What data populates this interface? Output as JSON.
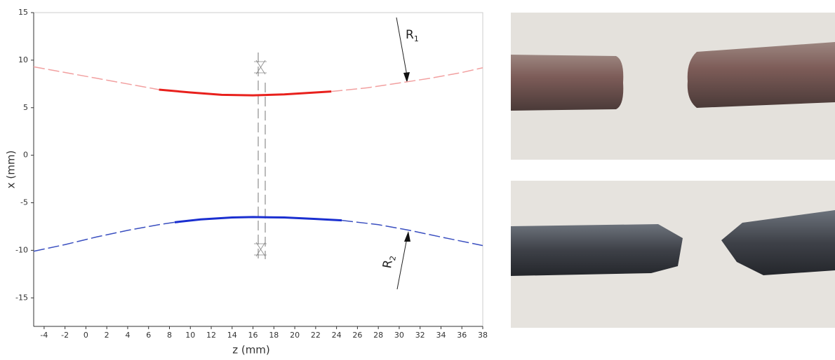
{
  "chart_data": {
    "type": "line",
    "xlabel": "z (mm)",
    "ylabel": "x (mm)",
    "xlim": [
      -5,
      38
    ],
    "ylim": [
      -18,
      15
    ],
    "xticks": [
      -4,
      -2,
      0,
      2,
      4,
      6,
      8,
      10,
      12,
      14,
      16,
      18,
      20,
      22,
      24,
      26,
      28,
      30,
      32,
      34,
      36,
      38
    ],
    "yticks": [
      15,
      10,
      5,
      0,
      -5,
      -10,
      -15
    ],
    "grid": false,
    "series": [
      {
        "color": "#f2a0a0",
        "style": "dashed",
        "x": [
          -5,
          -2,
          1,
          4,
          7
        ],
        "values": [
          9.3,
          8.7,
          8.1,
          7.5,
          6.9
        ]
      },
      {
        "color": "#e8201c",
        "style": "solid",
        "x": [
          7,
          10,
          13,
          16,
          19,
          22,
          23.5
        ],
        "values": [
          6.9,
          6.6,
          6.35,
          6.3,
          6.4,
          6.6,
          6.7
        ]
      },
      {
        "color": "#f2a0a0",
        "style": "dashed",
        "x": [
          23.5,
          27,
          30,
          33,
          36,
          38
        ],
        "values": [
          6.7,
          7.1,
          7.6,
          8.1,
          8.7,
          9.2
        ]
      },
      {
        "color": "#3a4fc0",
        "style": "dashed",
        "x": [
          -5,
          -2,
          1,
          4,
          7,
          8.5
        ],
        "values": [
          -10.1,
          -9.4,
          -8.6,
          -7.9,
          -7.3,
          -7.05
        ]
      },
      {
        "color": "#1a2fd0",
        "style": "solid",
        "x": [
          8.5,
          11,
          14,
          16,
          19,
          22,
          24.5
        ],
        "values": [
          -7.05,
          -6.75,
          -6.55,
          -6.5,
          -6.55,
          -6.7,
          -6.85
        ]
      },
      {
        "color": "#3a4fc0",
        "style": "dashed",
        "x": [
          24.5,
          28,
          31,
          34,
          38
        ],
        "values": [
          -6.85,
          -7.3,
          -7.9,
          -8.6,
          -9.5
        ]
      }
    ],
    "annotations": [
      {
        "text": "R",
        "sub": "1"
      },
      {
        "text": "R",
        "sub": "2"
      }
    ]
  }
}
